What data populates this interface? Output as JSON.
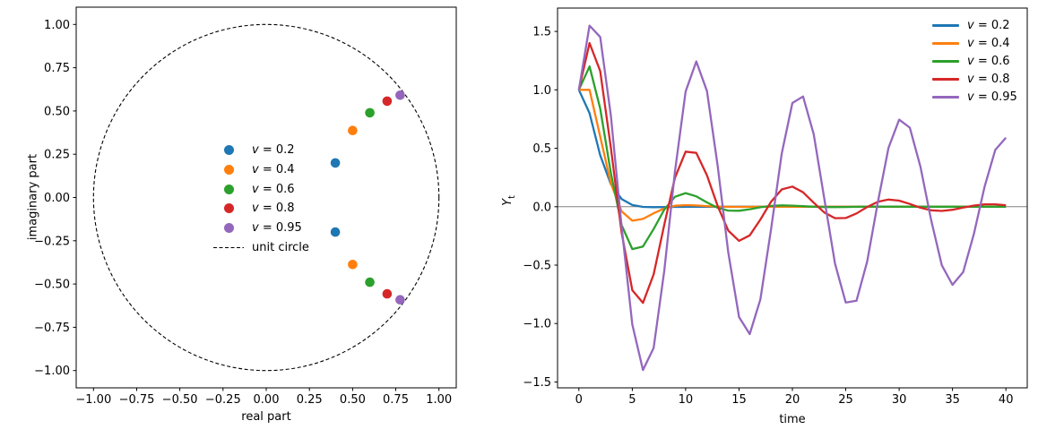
{
  "figure": {
    "background": "#ffffff"
  },
  "chart_data": [
    {
      "id": "roots-in-unit-circle",
      "type": "scatter",
      "title": "",
      "xlabel": "real part",
      "ylabel": "imaginary part",
      "xlim": [
        -1.1,
        1.1
      ],
      "ylim": [
        -1.1,
        1.1
      ],
      "grid": false,
      "legend_position": "center",
      "xticks": [
        {
          "v": -1.0,
          "label": "−1.00"
        },
        {
          "v": -0.75,
          "label": "−0.75"
        },
        {
          "v": -0.5,
          "label": "−0.50"
        },
        {
          "v": -0.25,
          "label": "−0.25"
        },
        {
          "v": 0.0,
          "label": "0.00"
        },
        {
          "v": 0.25,
          "label": "0.25"
        },
        {
          "v": 0.5,
          "label": "0.50"
        },
        {
          "v": 0.75,
          "label": "0.75"
        },
        {
          "v": 1.0,
          "label": "1.00"
        }
      ],
      "yticks": [
        {
          "v": -1.0,
          "label": "−1.00"
        },
        {
          "v": -0.75,
          "label": "−0.75"
        },
        {
          "v": -0.5,
          "label": "−0.50"
        },
        {
          "v": -0.25,
          "label": "−0.25"
        },
        {
          "v": 0.0,
          "label": "0.00"
        },
        {
          "v": 0.25,
          "label": "0.25"
        },
        {
          "v": 0.5,
          "label": "0.50"
        },
        {
          "v": 0.75,
          "label": "0.75"
        },
        {
          "v": 1.0,
          "label": "1.00"
        }
      ],
      "reference_curves": [
        {
          "name": "unit circle",
          "shape": "circle",
          "center": [
            0,
            0
          ],
          "radius": 1.0,
          "color": "#000000",
          "dashed": true
        }
      ],
      "series": [
        {
          "name": "v = 0.2",
          "color": "#1f77b4",
          "points": [
            [
              0.4,
              0.2
            ],
            [
              0.4,
              -0.2
            ]
          ]
        },
        {
          "name": "v = 0.4",
          "color": "#ff7f0e",
          "points": [
            [
              0.5,
              0.3873
            ],
            [
              0.5,
              -0.3873
            ]
          ]
        },
        {
          "name": "v = 0.6",
          "color": "#2ca02c",
          "points": [
            [
              0.6,
              0.4899
            ],
            [
              0.6,
              -0.4899
            ]
          ]
        },
        {
          "name": "v = 0.8",
          "color": "#d62728",
          "points": [
            [
              0.7,
              0.5568
            ],
            [
              0.7,
              -0.5568
            ]
          ]
        },
        {
          "name": "v = 0.95",
          "color": "#9467bd",
          "points": [
            [
              0.775,
              0.5911
            ],
            [
              0.775,
              -0.5911
            ]
          ]
        }
      ]
    },
    {
      "id": "impulse-responses",
      "type": "line",
      "title": "",
      "xlabel": "time",
      "ylabel": "Y_t",
      "xlim": [
        -2,
        42
      ],
      "ylim": [
        -1.55,
        1.7
      ],
      "grid": false,
      "legend_position": "upper right",
      "zero_line": {
        "y": 0,
        "color": "#808080"
      },
      "xticks": [
        {
          "v": 0,
          "label": "0"
        },
        {
          "v": 5,
          "label": "5"
        },
        {
          "v": 10,
          "label": "10"
        },
        {
          "v": 15,
          "label": "15"
        },
        {
          "v": 20,
          "label": "20"
        },
        {
          "v": 25,
          "label": "25"
        },
        {
          "v": 30,
          "label": "30"
        },
        {
          "v": 35,
          "label": "35"
        },
        {
          "v": 40,
          "label": "40"
        }
      ],
      "yticks": [
        {
          "v": -1.5,
          "label": "−1.5"
        },
        {
          "v": -1.0,
          "label": "−1.0"
        },
        {
          "v": -0.5,
          "label": "−0.5"
        },
        {
          "v": 0.0,
          "label": "0.0"
        },
        {
          "v": 0.5,
          "label": "0.5"
        },
        {
          "v": 1.0,
          "label": "1.0"
        },
        {
          "v": 1.5,
          "label": "1.5"
        }
      ],
      "x": [
        0,
        1,
        2,
        3,
        4,
        5,
        6,
        7,
        8,
        9,
        10,
        11,
        12,
        13,
        14,
        15,
        16,
        17,
        18,
        19,
        20,
        21,
        22,
        23,
        24,
        25,
        26,
        27,
        28,
        29,
        30,
        31,
        32,
        33,
        34,
        35,
        36,
        37,
        38,
        39,
        40
      ],
      "series": [
        {
          "name": "v = 0.2",
          "color": "#1f77b4",
          "values": [
            1.0,
            0.8,
            0.44,
            0.192,
            0.0656,
            0.0141,
            -0.0019,
            -0.0043,
            -0.0031,
            -0.0016,
            -0.0007,
            -0.0002,
            0.0,
            0.0,
            0.0,
            0.0,
            0.0,
            0.0,
            0.0,
            0.0,
            0.0,
            0.0,
            0.0,
            0.0,
            0.0,
            0.0,
            0.0,
            0.0,
            0.0,
            0.0,
            0.0,
            0.0,
            0.0,
            0.0,
            0.0,
            0.0,
            0.0,
            0.0,
            0.0,
            0.0,
            0.0
          ]
        },
        {
          "name": "v = 0.4",
          "color": "#ff7f0e",
          "values": [
            1.0,
            1.0,
            0.6,
            0.2,
            -0.04,
            -0.12,
            -0.104,
            -0.056,
            -0.0144,
            0.008,
            0.0138,
            0.0106,
            0.0051,
            0.0008,
            -0.0012,
            -0.0015,
            -0.001,
            -0.0004,
            0.0,
            0.0002,
            0.0002,
            0.0001,
            0.0,
            0.0,
            0.0,
            0.0,
            0.0,
            0.0,
            0.0,
            0.0,
            0.0,
            0.0,
            0.0,
            0.0,
            0.0,
            0.0,
            0.0,
            0.0,
            0.0,
            0.0,
            0.0
          ]
        },
        {
          "name": "v = 0.6",
          "color": "#2ca02c",
          "values": [
            1.0,
            1.2,
            0.84,
            0.288,
            -0.1584,
            -0.3629,
            -0.3404,
            -0.1908,
            -0.0247,
            0.0849,
            0.1166,
            0.089,
            0.0369,
            -0.0092,
            -0.0331,
            -0.0343,
            -0.0212,
            -0.0049,
            0.0068,
            0.0112,
            0.0093,
            0.0044,
            -0.0002,
            -0.0029,
            -0.0034,
            -0.0023,
            -0.0007,
            0.0005,
            0.001,
            0.001,
            0.0005,
            0.0,
            -0.0003,
            -0.0003,
            -0.0002,
            -0.0001,
            0.0,
            0.0001,
            0.0001,
            0.0001,
            0.0
          ]
        },
        {
          "name": "v = 0.8",
          "color": "#d62728",
          "values": [
            1.0,
            1.4,
            1.16,
            0.504,
            -0.2224,
            -0.7146,
            -0.8225,
            -0.5798,
            -0.1538,
            0.2486,
            0.471,
            0.4606,
            0.268,
            0.0067,
            -0.205,
            -0.2923,
            -0.2453,
            -0.1095,
            0.0429,
            0.1477,
            0.1724,
            0.1233,
            0.0346,
            -0.0501,
            -0.0979,
            -0.0969,
            -0.0574,
            -0.0028,
            0.042,
            0.061,
            0.0519,
            0.0238,
            -0.0082,
            -0.0305,
            -0.0361,
            -0.0262,
            -0.0078,
            0.0101,
            0.0203,
            0.0204,
            0.0123
          ]
        },
        {
          "name": "v = 0.95",
          "color": "#9467bd",
          "values": [
            1.0,
            1.55,
            1.4525,
            0.7789,
            -0.1726,
            -1.0075,
            -1.3976,
            -1.2092,
            -0.5465,
            0.3016,
            0.9867,
            1.2429,
            0.9891,
            0.3523,
            -0.3935,
            -0.9447,
            -1.0904,
            -0.7927,
            -0.1928,
            0.4542,
            0.8872,
            0.9436,
            0.6198,
            0.0642,
            -0.4893,
            -0.8194,
            -0.8052,
            -0.4697,
            0.0369,
            0.5034,
            0.7453,
            0.6769,
            0.3412,
            -0.1142,
            -0.5012,
            -0.6683,
            -0.5597,
            -0.2327,
            0.171,
            0.4862,
            0.5911
          ]
        }
      ]
    }
  ]
}
